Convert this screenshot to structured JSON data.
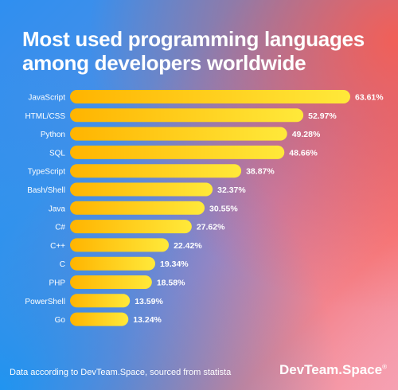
{
  "title": "Most used programming languages among developers worldwide",
  "footer": "Data according to DevTeam.Space, sourced from statista",
  "brand": "DevTeam.Space",
  "brand_mark": "®",
  "colors": {
    "bar_start": "#ffb400",
    "bar_end": "#ffe93a",
    "text": "#ffffff"
  },
  "chart_data": {
    "type": "bar",
    "orientation": "horizontal",
    "title": "Most used programming languages among developers worldwide",
    "categories": [
      "JavaScript",
      "HTML/CSS",
      "Python",
      "SQL",
      "TypeScript",
      "Bash/Shell",
      "Java",
      "C#",
      "C++",
      "C",
      "PHP",
      "PowerShell",
      "Go"
    ],
    "values": [
      63.61,
      52.97,
      49.28,
      48.66,
      38.87,
      32.37,
      30.55,
      27.62,
      22.42,
      19.34,
      18.58,
      13.59,
      13.24
    ],
    "value_labels": [
      "63.61%",
      "52.97%",
      "49.28%",
      "48.66%",
      "38.87%",
      "32.37%",
      "30.55%",
      "27.62%",
      "22.42%",
      "19.34%",
      "18.58%",
      "13.59%",
      "13.24%"
    ],
    "xlim": [
      0,
      63.61
    ],
    "grid": false,
    "legend": "none"
  }
}
